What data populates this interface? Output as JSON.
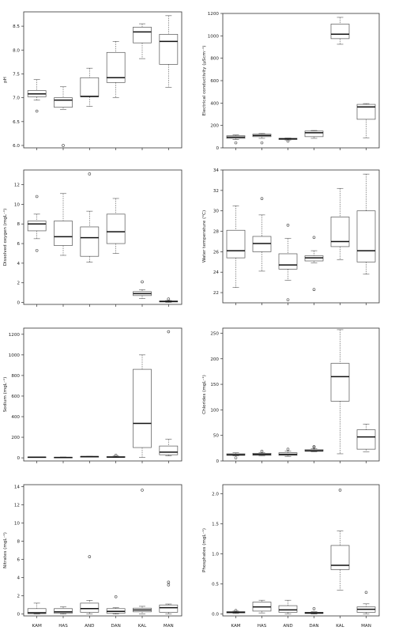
{
  "chart_data": [
    {
      "type": "boxplot",
      "ylabel": "pH",
      "categories": [
        "KAM",
        "HAS",
        "AND",
        "DAN",
        "KAL",
        "MAN"
      ],
      "ylim": [
        5.95,
        8.8
      ],
      "yticks": [
        6.0,
        6.5,
        7.0,
        7.5,
        8.0,
        8.5
      ],
      "tick_labels": [
        "6.0",
        "6.5",
        "7.0",
        "7.5",
        "8.0",
        "8.5"
      ],
      "boxes": [
        {
          "min": 6.95,
          "q1": 7.02,
          "median": 7.08,
          "q3": 7.15,
          "max": 7.38,
          "outliers": [
            6.72
          ]
        },
        {
          "min": 6.75,
          "q1": 6.8,
          "median": 6.95,
          "q3": 7.0,
          "max": 7.23,
          "outliers": [
            6.0
          ]
        },
        {
          "min": 6.82,
          "q1": 7.02,
          "median": 7.03,
          "q3": 7.42,
          "max": 7.62,
          "outliers": []
        },
        {
          "min": 7.0,
          "q1": 7.32,
          "median": 7.42,
          "q3": 7.95,
          "max": 8.18,
          "outliers": []
        },
        {
          "min": 7.82,
          "q1": 8.15,
          "median": 8.38,
          "q3": 8.48,
          "max": 8.55,
          "outliers": []
        },
        {
          "min": 7.22,
          "q1": 7.7,
          "median": 8.18,
          "q3": 8.33,
          "max": 8.72,
          "outliers": []
        }
      ]
    },
    {
      "type": "boxplot",
      "ylabel": "Electrical conductivity (µScm⁻¹)",
      "categories": [
        "KAM",
        "HAS",
        "AND",
        "DAN",
        "KAL",
        "MAN"
      ],
      "ylim": [
        0,
        1200
      ],
      "yticks": [
        0,
        200,
        400,
        600,
        800,
        1000,
        1200
      ],
      "tick_labels": [
        "0",
        "200",
        "400",
        "600",
        "800",
        "1000",
        "1200"
      ],
      "boxes": [
        {
          "min": 75,
          "q1": 85,
          "median": 95,
          "q3": 108,
          "max": 115,
          "outliers": [
            45
          ]
        },
        {
          "min": 85,
          "q1": 100,
          "median": 110,
          "q3": 122,
          "max": 128,
          "outliers": [
            45
          ]
        },
        {
          "min": 70,
          "q1": 75,
          "median": 80,
          "q3": 85,
          "max": 88,
          "outliers": [
            60
          ]
        },
        {
          "min": 85,
          "q1": 100,
          "median": 135,
          "q3": 150,
          "max": 155,
          "outliers": []
        },
        {
          "min": 925,
          "q1": 975,
          "median": 1015,
          "q3": 1105,
          "max": 1165,
          "outliers": []
        },
        {
          "min": 90,
          "q1": 255,
          "median": 365,
          "q3": 388,
          "max": 395,
          "outliers": []
        }
      ]
    },
    {
      "type": "boxplot",
      "ylabel": "Dissolved oxygen (mgL⁻¹)",
      "categories": [
        "KAM",
        "HAS",
        "AND",
        "DAN",
        "KAL",
        "MAN"
      ],
      "ylim": [
        -0.2,
        13.5
      ],
      "yticks": [
        0,
        2,
        4,
        6,
        8,
        10,
        12
      ],
      "tick_labels": [
        "0",
        "2",
        "4",
        "6",
        "8",
        "10",
        "12"
      ],
      "boxes": [
        {
          "min": 6.5,
          "q1": 7.3,
          "median": 8.0,
          "q3": 8.3,
          "max": 9.0,
          "outliers": [
            10.8,
            5.3
          ]
        },
        {
          "min": 4.8,
          "q1": 5.8,
          "median": 6.7,
          "q3": 8.3,
          "max": 11.1,
          "outliers": []
        },
        {
          "min": 4.1,
          "q1": 4.7,
          "median": 6.6,
          "q3": 7.7,
          "max": 9.3,
          "outliers": [
            13.1
          ]
        },
        {
          "min": 5.0,
          "q1": 6.0,
          "median": 7.2,
          "q3": 9.0,
          "max": 10.6,
          "outliers": []
        },
        {
          "min": 0.4,
          "q1": 0.7,
          "median": 0.9,
          "q3": 1.1,
          "max": 1.3,
          "outliers": [
            2.1
          ]
        },
        {
          "min": 0.0,
          "q1": 0.05,
          "median": 0.1,
          "q3": 0.15,
          "max": 0.2,
          "outliers": [
            0.35
          ]
        }
      ]
    },
    {
      "type": "boxplot",
      "ylabel": "Water temperature (°C)",
      "categories": [
        "KAM",
        "HAS",
        "AND",
        "DAN",
        "KAL",
        "MAN"
      ],
      "ylim": [
        21,
        34
      ],
      "yticks": [
        22,
        24,
        26,
        28,
        30,
        32,
        34
      ],
      "tick_labels": [
        "22",
        "24",
        "26",
        "28",
        "30",
        "32",
        "34"
      ],
      "boxes": [
        {
          "min": 22.5,
          "q1": 25.4,
          "median": 26.1,
          "q3": 28.1,
          "max": 30.5,
          "outliers": []
        },
        {
          "min": 24.1,
          "q1": 26.0,
          "median": 26.8,
          "q3": 27.5,
          "max": 29.6,
          "outliers": [
            31.2
          ]
        },
        {
          "min": 23.2,
          "q1": 24.3,
          "median": 24.7,
          "q3": 25.8,
          "max": 27.3,
          "outliers": [
            28.6,
            21.3
          ]
        },
        {
          "min": 24.9,
          "q1": 25.1,
          "median": 25.4,
          "q3": 25.6,
          "max": 26.1,
          "outliers": [
            27.4,
            22.3
          ]
        },
        {
          "min": 25.2,
          "q1": 26.5,
          "median": 27.0,
          "q3": 29.4,
          "max": 32.2,
          "outliers": []
        },
        {
          "min": 23.8,
          "q1": 25.0,
          "median": 26.1,
          "q3": 30.0,
          "max": 33.6,
          "outliers": []
        }
      ]
    },
    {
      "type": "boxplot",
      "ylabel": "Sodium (mgL⁻¹)",
      "categories": [
        "KAM",
        "HAS",
        "AND",
        "DAN",
        "KAL",
        "MAN"
      ],
      "ylim": [
        -30,
        1260
      ],
      "yticks": [
        0,
        200,
        400,
        600,
        800,
        1000,
        1200
      ],
      "tick_labels": [
        "0",
        "200",
        "400",
        "600",
        "800",
        "1000",
        "1200"
      ],
      "boxes": [
        {
          "min": 3,
          "q1": 5,
          "median": 6,
          "q3": 8,
          "max": 10,
          "outliers": []
        },
        {
          "min": 2,
          "q1": 3,
          "median": 4,
          "q3": 6,
          "max": 8,
          "outliers": []
        },
        {
          "min": 8,
          "q1": 10,
          "median": 12,
          "q3": 13,
          "max": 15,
          "outliers": []
        },
        {
          "min": 3,
          "q1": 5,
          "median": 7,
          "q3": 12,
          "max": 18,
          "outliers": [
            25
          ]
        },
        {
          "min": 5,
          "q1": 100,
          "median": 335,
          "q3": 860,
          "max": 1000,
          "outliers": []
        },
        {
          "min": 20,
          "q1": 30,
          "median": 55,
          "q3": 115,
          "max": 180,
          "outliers": [
            1225
          ]
        }
      ]
    },
    {
      "type": "boxplot",
      "ylabel": "Chlorides (mgL⁻¹)",
      "categories": [
        "KAM",
        "HAS",
        "AND",
        "DAN",
        "KAL",
        "MAN"
      ],
      "ylim": [
        0,
        260
      ],
      "yticks": [
        0,
        50,
        100,
        150,
        200,
        250
      ],
      "tick_labels": [
        "0",
        "50",
        "100",
        "150",
        "200",
        "250"
      ],
      "boxes": [
        {
          "min": 10,
          "q1": 11,
          "median": 12,
          "q3": 14,
          "max": 16,
          "outliers": [
            6
          ]
        },
        {
          "min": 10,
          "q1": 11,
          "median": 13,
          "q3": 15,
          "max": 16,
          "outliers": [
            19
          ]
        },
        {
          "min": 9,
          "q1": 11,
          "median": 13,
          "q3": 16,
          "max": 19,
          "outliers": [
            23
          ]
        },
        {
          "min": 18,
          "q1": 19,
          "median": 20,
          "q3": 22,
          "max": 24,
          "outliers": [
            28,
            27
          ]
        },
        {
          "min": 14,
          "q1": 117,
          "median": 165,
          "q3": 191,
          "max": 257,
          "outliers": []
        },
        {
          "min": 18,
          "q1": 23,
          "median": 47,
          "q3": 61,
          "max": 72,
          "outliers": []
        }
      ]
    },
    {
      "type": "boxplot",
      "ylabel": "Nitrates (mgL⁻¹)",
      "categories": [
        "KAM",
        "HAS",
        "AND",
        "DAN",
        "KAL",
        "MAN"
      ],
      "ylim": [
        -0.2,
        14.2
      ],
      "yticks": [
        0,
        2,
        4,
        6,
        8,
        10,
        12,
        14
      ],
      "tick_labels": [
        "0",
        "2",
        "4",
        "6",
        "8",
        "10",
        "12",
        "14"
      ],
      "boxes": [
        {
          "min": 0.0,
          "q1": 0.05,
          "median": 0.15,
          "q3": 0.6,
          "max": 1.2,
          "outliers": []
        },
        {
          "min": 0.0,
          "q1": 0.1,
          "median": 0.25,
          "q3": 0.6,
          "max": 0.8,
          "outliers": []
        },
        {
          "min": 0.0,
          "q1": 0.2,
          "median": 0.6,
          "q3": 1.2,
          "max": 1.5,
          "outliers": [
            6.3
          ]
        },
        {
          "min": 0.0,
          "q1": 0.1,
          "median": 0.3,
          "q3": 0.6,
          "max": 0.7,
          "outliers": [
            1.9
          ]
        },
        {
          "min": 0.0,
          "q1": 0.25,
          "median": 0.45,
          "q3": 0.65,
          "max": 0.85,
          "outliers": [
            13.6
          ]
        },
        {
          "min": 0.0,
          "q1": 0.2,
          "median": 0.7,
          "q3": 1.0,
          "max": 1.1,
          "outliers": [
            3.5,
            3.2
          ]
        }
      ]
    },
    {
      "type": "boxplot",
      "ylabel": "Phosphates (mgL⁻¹)",
      "categories": [
        "KAM",
        "HAS",
        "AND",
        "DAN",
        "KAL",
        "MAN"
      ],
      "ylim": [
        -0.03,
        2.15
      ],
      "yticks": [
        0.0,
        0.5,
        1.0,
        1.5,
        2.0
      ],
      "tick_labels": [
        "0.0",
        "0.5",
        "1.0",
        "1.5",
        "2.0"
      ],
      "boxes": [
        {
          "min": 0.01,
          "q1": 0.02,
          "median": 0.03,
          "q3": 0.04,
          "max": 0.05,
          "outliers": [
            0.06
          ]
        },
        {
          "min": 0.02,
          "q1": 0.05,
          "median": 0.12,
          "q3": 0.2,
          "max": 0.23,
          "outliers": []
        },
        {
          "min": 0.0,
          "q1": 0.03,
          "median": 0.07,
          "q3": 0.14,
          "max": 0.23,
          "outliers": []
        },
        {
          "min": 0.0,
          "q1": 0.01,
          "median": 0.02,
          "q3": 0.03,
          "max": 0.04,
          "outliers": [
            0.09
          ]
        },
        {
          "min": 0.4,
          "q1": 0.74,
          "median": 0.81,
          "q3": 1.14,
          "max": 1.38,
          "outliers": [
            2.06
          ]
        },
        {
          "min": 0.0,
          "q1": 0.03,
          "median": 0.08,
          "q3": 0.12,
          "max": 0.17,
          "outliers": [
            0.36
          ]
        }
      ]
    }
  ]
}
